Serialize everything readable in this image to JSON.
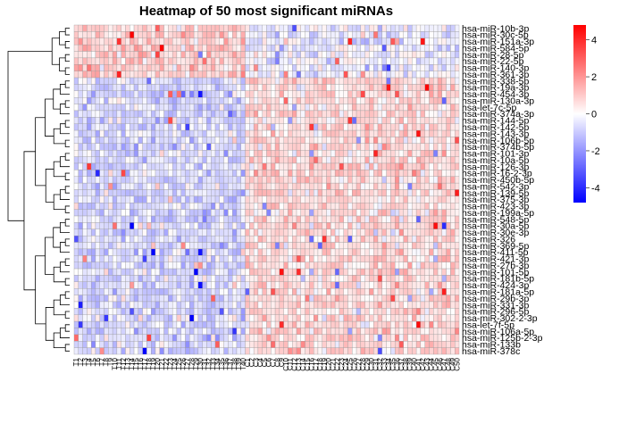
{
  "chart_data": {
    "type": "heatmap",
    "title": "Heatmap of 50 most significant miRNAs",
    "n_samples": 90,
    "n_group1": 40,
    "row_labels": [
      "hsa-miR-10b-3p",
      "hsa-miR-30c-5p",
      "hsa-miR-151a-3p",
      "hsa-miR-584-5p",
      "hsa-miR-28-5p",
      "hsa-miR-22-5p",
      "hsa-miR-140-3p",
      "hsa-miR-361-3p",
      "hsa-miR-338-5p",
      "hsa-miR-19a-3p",
      "hsa-miR-454-3p",
      "hsa-miR-130a-3p",
      "hsa-let-7c-5p",
      "hsa-miR-374a-3p",
      "hsa-miR-144-5p",
      "hsa-miR-142-5p",
      "hsa-miR-143-3p",
      "hsa-miR-106b-5p",
      "hsa-miR-374b-5p",
      "hsa-miR-101-3p",
      "hsa-miR-10a-5p",
      "hsa-miR-126-3p",
      "hsa-miR-16-2-3p",
      "hsa-miR-450b-5p",
      "hsa-miR-542-3p",
      "hsa-miR-139-5p",
      "hsa-miR-375-3p",
      "hsa-miR-423-3p",
      "hsa-miR-199a-5p",
      "hsa-miR-548-5p",
      "hsa-miR-30a-5p",
      "hsa-miR-30e-3p",
      "hsa-miR-326",
      "hsa-miR-369-5p",
      "hsa-miR-411-5p",
      "hsa-miR-421-3p",
      "hsa-miR-27b-3p",
      "hsa-miR-101-5p",
      "hsa-miR-181b-5p",
      "hsa-miR-424-3p",
      "hsa-miR-181a-5p",
      "hsa-miR-29b-3p",
      "hsa-miR-331-3p",
      "hsa-miR-296-5p",
      "hsa-miR-302-2-3p",
      "hsa-let-7f-5p",
      "hsa-miR-106a-5p",
      "hsa-miR-125b-2-3p",
      "hsa-miR-133b",
      "hsa-miR-378c"
    ],
    "column_labels": [
      "T1",
      "T2",
      "T3",
      "T4",
      "T5",
      "T6",
      "T7",
      "T8",
      "T9",
      "T10",
      "T11",
      "T12",
      "T13",
      "T14",
      "T15",
      "T16",
      "T17",
      "T18",
      "T19",
      "T20",
      "T21",
      "T22",
      "T23",
      "T24",
      "T25",
      "T26",
      "T27",
      "T28",
      "T29",
      "T30",
      "T31",
      "T32",
      "T33",
      "T34",
      "T35",
      "T36",
      "T37",
      "T38",
      "T39",
      "T40",
      "C1",
      "C2",
      "C3",
      "C4",
      "C5",
      "C6",
      "C7",
      "C8",
      "C9",
      "C10",
      "C11",
      "C12",
      "C13",
      "C14",
      "C15",
      "C16",
      "C17",
      "C18",
      "C19",
      "C20",
      "C21",
      "C22",
      "C23",
      "C24",
      "C25",
      "C26",
      "C27",
      "C28",
      "C29",
      "C30",
      "C31",
      "C32",
      "C33",
      "C34",
      "C35",
      "C36",
      "C37",
      "C38",
      "C39",
      "C40",
      "C41",
      "C42",
      "C43",
      "C44",
      "C45",
      "C46",
      "C47",
      "C48",
      "C49",
      "C50"
    ],
    "value_range": [
      -4.8,
      4.8
    ],
    "color_scale": {
      "low": "#0000ff",
      "mid": "#ffffff",
      "high": "#ff0000"
    },
    "legend": {
      "position": "top-right",
      "ticks": [
        4,
        2,
        0,
        -2,
        -4
      ]
    },
    "row_dendrogram": true,
    "column_dendrogram": false
  }
}
